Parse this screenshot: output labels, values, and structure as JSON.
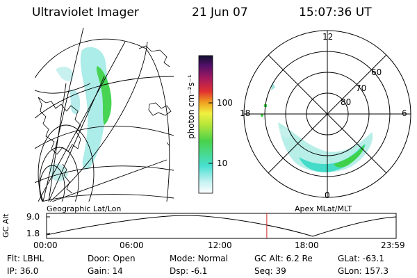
{
  "header": {
    "title": "Ultraviolet Imager",
    "date": "21 Jun 07",
    "time": "15:07:36 UT"
  },
  "left_map": {
    "caption": "Geographic Lat/Lon"
  },
  "colorbar": {
    "ticks": [
      "100",
      "10"
    ],
    "unit_label": "photon cm⁻²s⁻¹"
  },
  "polar_plot": {
    "caption": "Apex MLat/MLT",
    "mlt_labels": {
      "top": "12",
      "left": "18",
      "right": "6",
      "bottom": "0"
    },
    "lat_labels": [
      "60",
      "70",
      "80"
    ]
  },
  "altitude_strip": {
    "axis_title": "GC Alt",
    "y_ticks": [
      "9.0",
      "1.8"
    ],
    "x_ticks": [
      "00:00",
      "06:00",
      "12:00",
      "18:00",
      "23:59"
    ],
    "current_marker_fraction": 0.63
  },
  "status": [
    {
      "label": "Flt:",
      "value": "LBHL"
    },
    {
      "label": "Door:",
      "value": "Open"
    },
    {
      "label": "Mode:",
      "value": "Normal"
    },
    {
      "label": "GC Alt:",
      "value": "6.2 Re"
    },
    {
      "label": "GLat:",
      "value": "-63.1"
    },
    {
      "label": "IP:",
      "value": "36.0"
    },
    {
      "label": "Gain:",
      "value": "14"
    },
    {
      "label": "Dsp:",
      "value": "-6.1"
    },
    {
      "label": "Seq:",
      "value": "39"
    },
    {
      "label": "GLon:",
      "value": "157.3"
    }
  ],
  "colors": {
    "aurora_low": "#5ee6dc",
    "aurora_high": "#3ed24a",
    "marker": "#cc2222"
  }
}
